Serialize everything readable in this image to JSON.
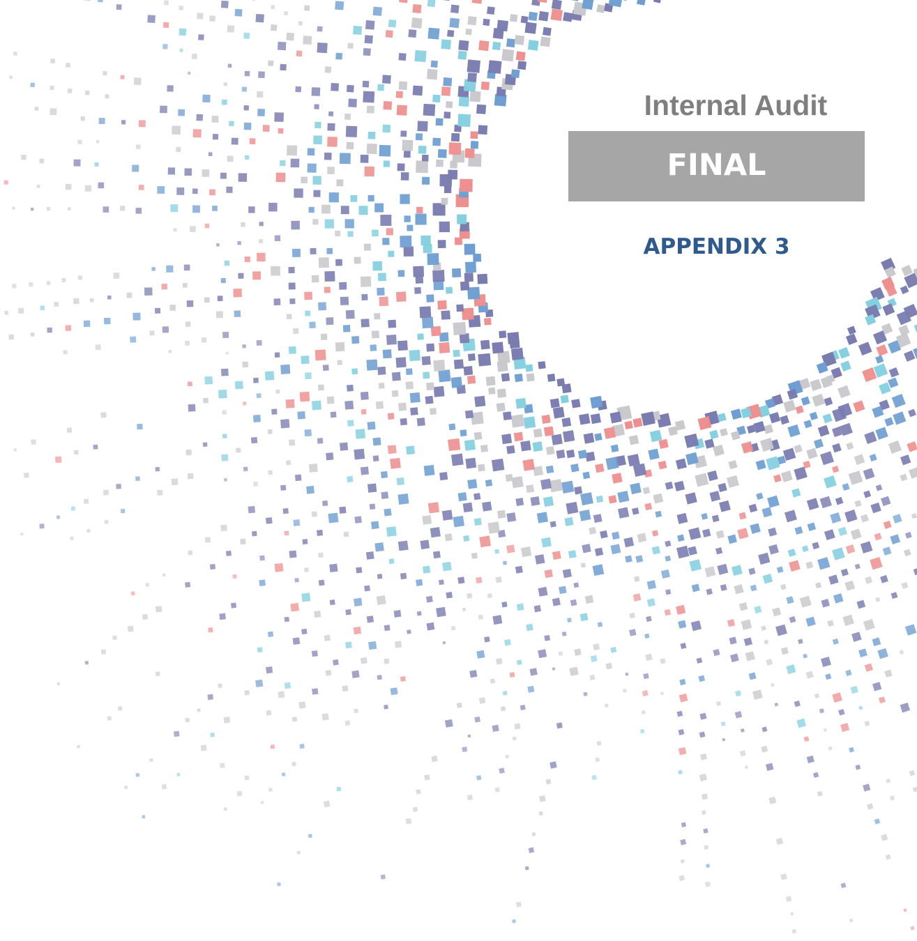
{
  "header": {
    "title": "Internal Audit",
    "status": "FINAL",
    "appendix": "APPENDIX 3"
  }
}
